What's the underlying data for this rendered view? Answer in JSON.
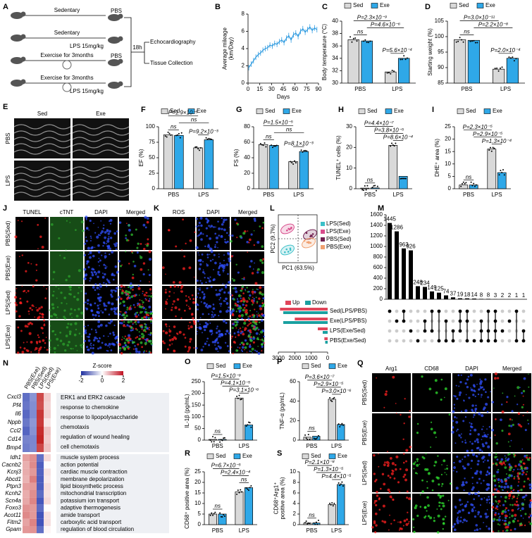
{
  "panels": {
    "A": {
      "label": "A",
      "rows": [
        {
          "activity": "Sedentary",
          "treatment": "PBS"
        },
        {
          "activity": "Sedentary",
          "treatment": "LPS 15mg/kg"
        },
        {
          "activity": "Exercise for 3months",
          "treatment": "PBS"
        },
        {
          "activity": "Exercise for 3months",
          "treatment": "LPS 15mg/kg"
        }
      ],
      "interval": "18h",
      "outcomes": [
        "Echocardiography",
        "Tissue Collection"
      ]
    },
    "B": {
      "label": "B",
      "type": "line",
      "ylabel": [
        "Average mileage",
        "(km/Day)"
      ],
      "xlabel": "Days",
      "color": "#2f9be0",
      "x": [
        1,
        4,
        7,
        10,
        13,
        16,
        19,
        22,
        25,
        28,
        31,
        34,
        37,
        40,
        43,
        46,
        49,
        52,
        55,
        58,
        61,
        64,
        67,
        70,
        73,
        76,
        79,
        82,
        85,
        88
      ],
      "values": [
        1.8,
        2.2,
        2.6,
        3.0,
        3.3,
        3.5,
        3.8,
        4.0,
        4.1,
        4.4,
        4.3,
        4.6,
        4.5,
        4.8,
        5.0,
        4.7,
        5.2,
        5.5,
        5.0,
        5.6,
        5.8,
        5.4,
        6.0,
        6.3,
        5.9,
        6.2,
        6.5,
        6.1,
        6.4,
        6.2
      ],
      "xlim": [
        0,
        90
      ],
      "xticks": [
        0,
        15,
        30,
        45,
        60,
        75,
        90
      ],
      "ylim": [
        0,
        8
      ],
      "yticks": [
        0,
        2,
        4,
        6,
        8
      ]
    },
    "C": {
      "label": "C",
      "type": "bar",
      "ylabel": "Body temperature (°C)",
      "categories": [
        "PBS",
        "LPS"
      ],
      "series": [
        {
          "name": "Sed",
          "color": "#d9d9d9",
          "values": [
            37,
            31.8
          ]
        },
        {
          "name": "Exe",
          "color": "#2fa8e8",
          "values": [
            36.8,
            34
          ]
        }
      ],
      "ylim": [
        30,
        40
      ],
      "yticks": [
        30,
        32,
        34,
        36,
        38,
        40
      ],
      "annotations": [
        "ns",
        "P=5.6×10⁻⁴",
        "P=4.6×10⁻⁶",
        "P=2.3×10⁻⁹"
      ]
    },
    "D": {
      "label": "D",
      "type": "bar",
      "ylabel": "Starting weight (%)",
      "categories": [
        "PBS",
        "LPS"
      ],
      "series": [
        {
          "name": "Sed",
          "color": "#d9d9d9",
          "values": [
            99,
            89.5
          ]
        },
        {
          "name": "Exe",
          "color": "#2fa8e8",
          "values": [
            98.8,
            93
          ]
        }
      ],
      "ylim": [
        85,
        105
      ],
      "yticks": [
        85,
        90,
        95,
        100,
        105
      ],
      "annotations": [
        "ns",
        "P=2.0×10⁻⁴",
        "P=2.2×10⁻⁸",
        "P=3.0×10⁻¹¹"
      ]
    },
    "E": {
      "label": "E",
      "columns": [
        "Sed",
        "Exe"
      ],
      "rows": [
        "PBS",
        "LPS"
      ]
    },
    "F": {
      "label": "F",
      "type": "bar",
      "ylabel": "EF (%)",
      "categories": [
        "PBS",
        "LPS"
      ],
      "series": [
        {
          "name": "Sed",
          "color": "#d9d9d9",
          "values": [
            87,
            66
          ]
        },
        {
          "name": "Exe",
          "color": "#2fa8e8",
          "values": [
            86,
            79
          ]
        }
      ],
      "ylim": [
        0,
        100
      ],
      "yticks": [
        0,
        25,
        50,
        75,
        100
      ],
      "annotations": [
        "ns",
        "P=9.2×10⁻³",
        "ns",
        "P=1.9×10⁻⁵"
      ]
    },
    "G": {
      "label": "G",
      "type": "bar",
      "ylabel": "FS (%)",
      "categories": [
        "PBS",
        "LPS"
      ],
      "series": [
        {
          "name": "Sed",
          "color": "#d9d9d9",
          "values": [
            57,
            35
          ]
        },
        {
          "name": "Exe",
          "color": "#2fa8e8",
          "values": [
            56,
            48
          ]
        }
      ],
      "ylim": [
        0,
        80
      ],
      "yticks": [
        0,
        20,
        40,
        60,
        80
      ],
      "annotations": [
        "ns",
        "P=8.1×10⁻³",
        "ns",
        "P=1.5×10⁻⁵"
      ]
    },
    "H": {
      "label": "H",
      "type": "bar",
      "ylabel": "TUNEL⁺ cells (%)",
      "categories": [
        "PBS",
        "LPS"
      ],
      "series": [
        {
          "name": "Sed",
          "color": "#d9d9d9",
          "values": [
            0.3,
            21
          ]
        },
        {
          "name": "Exe",
          "color": "#2fa8e8",
          "values": [
            0.4,
            6
          ]
        }
      ],
      "ylim": [
        0,
        30
      ],
      "yticks": [
        0,
        10,
        20,
        30
      ],
      "annotations": [
        "ns",
        "P=8.6×10⁻⁴",
        "P=3.8×10⁻⁵",
        "P=4.4×10⁻⁷"
      ]
    },
    "I": {
      "label": "I",
      "type": "bar",
      "ylabel": "DHE⁺ area (%)",
      "categories": [
        "PBS",
        "LPS"
      ],
      "series": [
        {
          "name": "Sed",
          "color": "#d9d9d9",
          "values": [
            1.5,
            16
          ]
        },
        {
          "name": "Exe",
          "color": "#2fa8e8",
          "values": [
            1.5,
            6.5
          ]
        }
      ],
      "ylim": [
        0,
        25
      ],
      "yticks": [
        0,
        5,
        10,
        15,
        20,
        25
      ],
      "annotations": [
        "ns",
        "P=1.3×10⁻⁴",
        "P=2.9×10⁻⁵",
        "P=2.3×10⁻⁵"
      ]
    },
    "J": {
      "label": "J",
      "columns": [
        "TUNEL",
        "cTNT",
        "DAPI",
        "Merged"
      ],
      "rows": [
        "PBS(Sed)",
        "PBS(Exe)",
        "LPS(Sed)",
        "LPS(Exe)"
      ]
    },
    "K": {
      "label": "K",
      "columns": [
        "ROS",
        "DAPI",
        "Merged"
      ]
    },
    "L": {
      "label": "L",
      "xlabel": "PC1 (63.5%)",
      "ylabel": "PC2 (9.7%)",
      "groups": [
        {
          "name": "LPS(Sed)",
          "color": "#3cc0c8"
        },
        {
          "name": "LPS(Exe)",
          "color": "#d84c8c"
        },
        {
          "name": "PBS(Sed)",
          "color": "#702050"
        },
        {
          "name": "PBS(Exe)",
          "color": "#f0a070"
        }
      ],
      "legend": [
        {
          "name": "Up",
          "color": "#e0455a"
        },
        {
          "name": "Down",
          "color": "#1aa0a0"
        }
      ],
      "sets": [
        {
          "name": "Sed(LPS/PBS)",
          "up": 2900,
          "down": 2700
        },
        {
          "name": "Exe(LPS/PBS)",
          "up": 2000,
          "down": 2700
        },
        {
          "name": "LPS(Exe/Sed)",
          "up": 600,
          "down": 300
        },
        {
          "name": "PBS(Exe/Sed)",
          "up": 200,
          "down": 150
        }
      ],
      "xlim": [
        3000,
        0
      ],
      "xticks": [
        3000,
        2000,
        1000,
        0
      ]
    },
    "M": {
      "label": "M",
      "type": "bar",
      "values": [
        1445,
        1286,
        963,
        926,
        248,
        234,
        149,
        125,
        74,
        37,
        19,
        18,
        14,
        8,
        8,
        3,
        2,
        2,
        1,
        1
      ],
      "ylim": [
        0,
        1600
      ],
      "yticks": [
        0,
        200,
        400,
        600,
        800,
        1000,
        1200,
        1400,
        1600
      ]
    },
    "N": {
      "label": "N",
      "columns": [
        "PBS(Exe)",
        "PBS(Sed)",
        "LPS(Sed)",
        "LPS(Exe)"
      ],
      "colorbar": {
        "title": "Z-score",
        "ticks": [
          -2,
          0,
          2
        ]
      },
      "genes_up": [
        "Cxcl3",
        "Pf4",
        "Il6",
        "Nppb",
        "Ccl2",
        "Cd14",
        "Bmp4"
      ],
      "terms_up": [
        "ERK1 and ERK2 cascade",
        "response to chemokine",
        "response to lipopolysaccharide",
        "chemotaxis",
        "regulation of wound healing",
        "cell chemotaxis"
      ],
      "genes_down": [
        "Idh1",
        "Cacnb2",
        "Kcnj3",
        "Abcd1",
        "Ptpn3",
        "Kcnh2",
        "Scn4a",
        "Foxo3",
        "Acot11",
        "Fitm2",
        "Gpam"
      ],
      "terms_down": [
        "muscle system process",
        "action potential",
        "cardiac muscle contraction",
        "membrane depolarization",
        "lipid biosynthetic process",
        "mitochondrial transcription",
        "potassium ion transport",
        "adaptive thermogenesis",
        "amide transport",
        "carboxylic acid transport",
        "regulation of blood circulation"
      ]
    },
    "O": {
      "label": "O",
      "type": "bar",
      "ylabel": "IL-1β (pg/mL)",
      "categories": [
        "PBS",
        "LPS"
      ],
      "series": [
        {
          "name": "Sed",
          "color": "#d9d9d9",
          "values": [
            3,
            180
          ]
        },
        {
          "name": "Exe",
          "color": "#2fa8e8",
          "values": [
            3,
            65
          ]
        }
      ],
      "ylim": [
        0,
        250
      ],
      "yticks": [
        0,
        50,
        100,
        150,
        200,
        250
      ],
      "annotations": [
        "ns",
        "P=3.1×10⁻⁶",
        "P=4.1×10⁻⁵",
        "P=1.5×10⁻⁹"
      ]
    },
    "P": {
      "label": "P",
      "type": "bar",
      "ylabel": "TNF-α (pg/mL)",
      "categories": [
        "PBS",
        "LPS"
      ],
      "series": [
        {
          "name": "Sed",
          "color": "#d9d9d9",
          "values": [
            3,
            42
          ]
        },
        {
          "name": "Exe",
          "color": "#2fa8e8",
          "values": [
            4,
            16
          ]
        }
      ],
      "ylim": [
        0,
        60
      ],
      "yticks": [
        0,
        20,
        40,
        60
      ],
      "annotations": [
        "ns",
        "P=3.0×10⁻⁶",
        "P=2.9×10⁻⁵",
        "P=3.6×10⁻⁷"
      ]
    },
    "Q": {
      "label": "Q",
      "columns": [
        "Arg1",
        "CD68",
        "DAPI",
        "Merged"
      ],
      "rows": [
        "PBS(Sed)",
        "PBS(Exe)",
        "LPS(Sed)",
        "LPS(Exe)"
      ]
    },
    "R": {
      "label": "R",
      "type": "bar",
      "ylabel": "CD68⁺ positive area (%)",
      "categories": [
        "PBS",
        "LPS"
      ],
      "series": [
        {
          "name": "Sed",
          "color": "#d9d9d9",
          "values": [
            5,
            15.5
          ]
        },
        {
          "name": "Exe",
          "color": "#2fa8e8",
          "values": [
            5,
            17.5
          ]
        }
      ],
      "ylim": [
        0,
        25
      ],
      "yticks": [
        0,
        5,
        10,
        15,
        20,
        25
      ],
      "annotations": [
        "ns",
        "ns",
        "P=2.4×10⁻⁴",
        "P=6.7×10⁻⁵"
      ]
    },
    "S": {
      "label": "S",
      "type": "bar",
      "ylabel": [
        "CD68⁺Arg1⁺",
        "positive area (%)"
      ],
      "categories": [
        "PBS",
        "LPS"
      ],
      "series": [
        {
          "name": "Sed",
          "color": "#d9d9d9",
          "values": [
            0.3,
            3.8
          ]
        },
        {
          "name": "Exe",
          "color": "#2fa8e8",
          "values": [
            0.3,
            7.6
          ]
        }
      ],
      "ylim": [
        0,
        10
      ],
      "yticks": [
        0,
        2,
        4,
        6,
        8,
        10
      ],
      "annotations": [
        "ns",
        "P=4.4×10⁻⁵",
        "P=1.3×10⁻⁵",
        "P=2.1×10⁻⁸"
      ]
    }
  }
}
